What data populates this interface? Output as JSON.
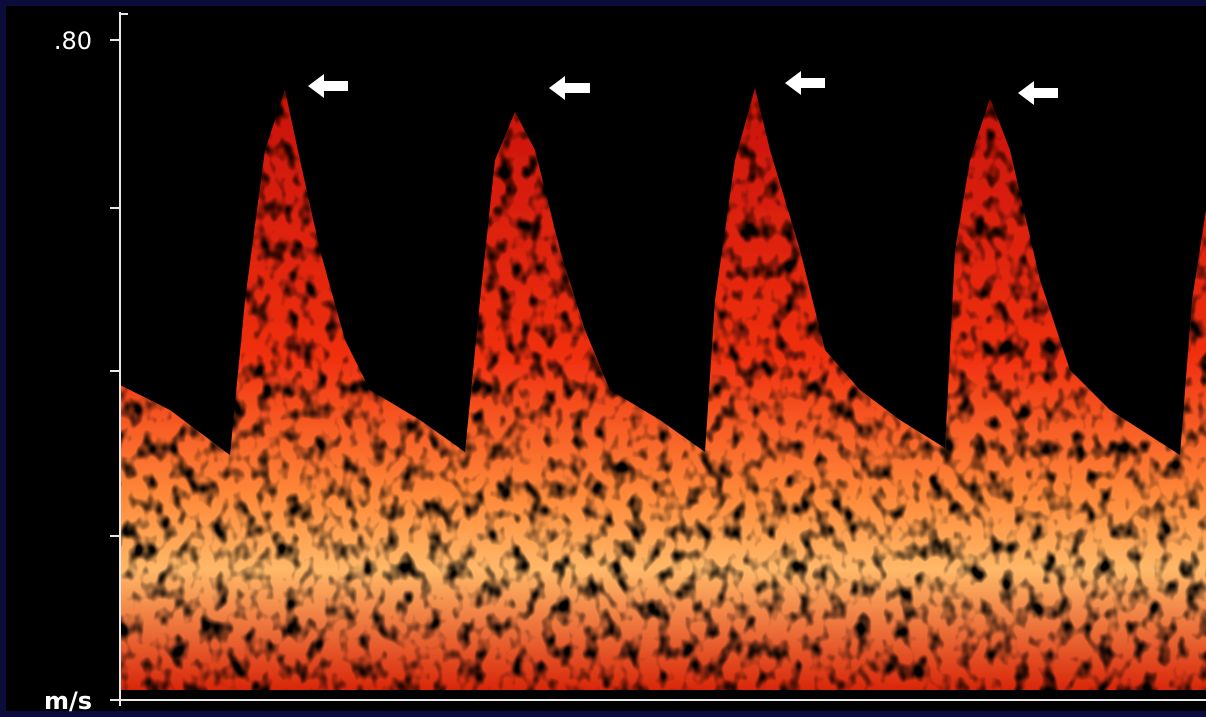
{
  "axis": {
    "top_label": ".80",
    "unit": "m/s"
  }
}
